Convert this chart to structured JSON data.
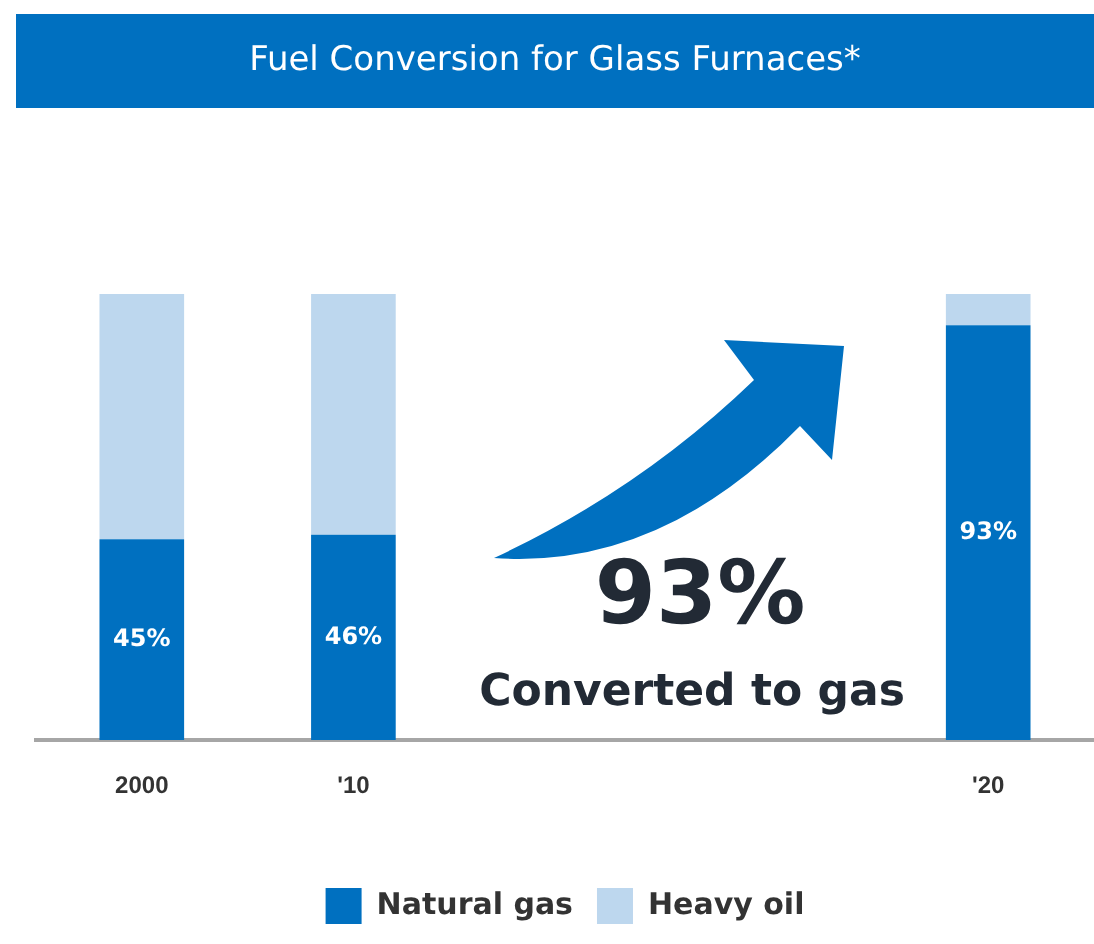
{
  "chart_data": {
    "type": "bar",
    "title": "Fuel Conversion for Glass Furnaces*",
    "categories": [
      "2000",
      "'10",
      null,
      null,
      "'20"
    ],
    "series": [
      {
        "name": "Natural gas",
        "color": "#0070c0",
        "values": [
          45,
          46,
          null,
          null,
          93
        ],
        "value_labels": [
          "45%",
          "46%",
          null,
          null,
          "93%"
        ]
      },
      {
        "name": "Heavy oil",
        "color": "#bdd7ee",
        "values": [
          55,
          54,
          null,
          null,
          7
        ]
      }
    ],
    "stacked": true,
    "ylim": [
      0,
      100
    ],
    "tick_labels": "x",
    "grid": false,
    "legend": "bottom",
    "annotations": [
      "93%",
      "Converted to gas"
    ]
  }
}
